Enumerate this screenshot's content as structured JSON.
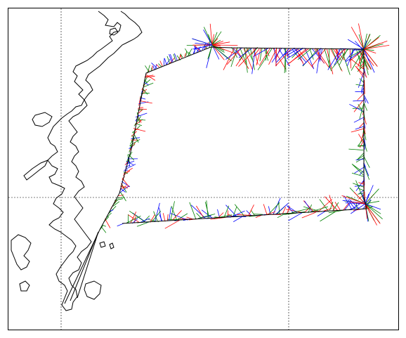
{
  "map": {
    "type": "current-vector-track-map",
    "gridlines": true,
    "vector_colors": {
      "red": "#ff0000",
      "green": "#008000",
      "blue": "#0000ff"
    },
    "frame_color": "#000000",
    "coastline_color": "#000000"
  }
}
